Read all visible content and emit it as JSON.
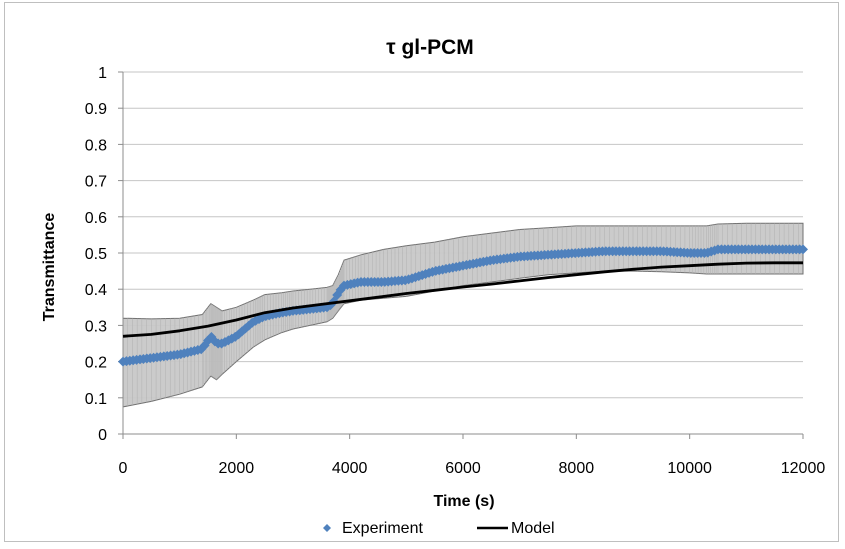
{
  "chart_data": {
    "type": "scatter",
    "title": "τ gl-PCM",
    "xlabel": "Time (s)",
    "ylabel": "Transmittance",
    "xlim": [
      0,
      12000
    ],
    "ylim": [
      0,
      1
    ],
    "xticks": [
      "0",
      "2000",
      "4000",
      "6000",
      "8000",
      "10000",
      "12000"
    ],
    "yticks": [
      "0",
      "0.1",
      "0.2",
      "0.3",
      "0.4",
      "0.5",
      "0.6",
      "0.7",
      "0.8",
      "0.9",
      "1"
    ],
    "grid": true,
    "legend_position": "bottom",
    "legend": {
      "experiment": "Experiment",
      "model": "Model"
    },
    "colors": {
      "experiment": "#4f81bd",
      "model": "#000000",
      "band": "#c8c8c8",
      "band_stroke": "#707070"
    },
    "series": [
      {
        "name": "Experiment",
        "style": "markers",
        "x": [
          0,
          500,
          1000,
          1400,
          1550,
          1650,
          1750,
          2000,
          2300,
          2500,
          2800,
          3000,
          3300,
          3600,
          3700,
          3800,
          3900,
          4200,
          4600,
          5000,
          5500,
          6000,
          6500,
          7000,
          7500,
          8000,
          8500,
          9000,
          9500,
          10000,
          10300,
          10500,
          11000,
          11500,
          12000
        ],
        "y": [
          0.2,
          0.21,
          0.22,
          0.235,
          0.27,
          0.25,
          0.25,
          0.27,
          0.31,
          0.325,
          0.335,
          0.34,
          0.345,
          0.35,
          0.36,
          0.39,
          0.41,
          0.42,
          0.42,
          0.425,
          0.45,
          0.465,
          0.48,
          0.49,
          0.495,
          0.5,
          0.505,
          0.505,
          0.505,
          0.5,
          0.5,
          0.51,
          0.51,
          0.51,
          0.51
        ]
      },
      {
        "name": "Model",
        "style": "line",
        "x": [
          0,
          500,
          1000,
          1500,
          2000,
          2500,
          3000,
          3500,
          4000,
          4500,
          5000,
          5500,
          6000,
          6500,
          7000,
          7500,
          8000,
          8500,
          9000,
          9500,
          10000,
          10500,
          11000,
          11500,
          12000
        ],
        "y": [
          0.27,
          0.275,
          0.285,
          0.298,
          0.315,
          0.335,
          0.348,
          0.358,
          0.368,
          0.378,
          0.388,
          0.397,
          0.406,
          0.414,
          0.423,
          0.432,
          0.44,
          0.448,
          0.455,
          0.461,
          0.465,
          0.469,
          0.472,
          0.473,
          0.473
        ]
      }
    ],
    "uncertainty_band": {
      "x": [
        0,
        500,
        1000,
        1400,
        1550,
        1650,
        1750,
        2000,
        2300,
        2500,
        2800,
        3000,
        3300,
        3600,
        3700,
        3800,
        3900,
        4200,
        4600,
        5000,
        5500,
        6000,
        6500,
        7000,
        7500,
        8000,
        8500,
        9000,
        9500,
        10000,
        10300,
        10500,
        11000,
        11500,
        12000
      ],
      "upper": [
        0.32,
        0.318,
        0.32,
        0.33,
        0.36,
        0.35,
        0.34,
        0.35,
        0.37,
        0.385,
        0.39,
        0.395,
        0.4,
        0.405,
        0.41,
        0.44,
        0.48,
        0.495,
        0.51,
        0.52,
        0.53,
        0.545,
        0.555,
        0.565,
        0.57,
        0.575,
        0.575,
        0.575,
        0.575,
        0.575,
        0.575,
        0.58,
        0.582,
        0.582,
        0.582
      ],
      "lower": [
        0.075,
        0.09,
        0.11,
        0.13,
        0.16,
        0.15,
        0.165,
        0.2,
        0.24,
        0.26,
        0.28,
        0.29,
        0.3,
        0.31,
        0.32,
        0.34,
        0.36,
        0.37,
        0.375,
        0.38,
        0.395,
        0.41,
        0.42,
        0.43,
        0.44,
        0.445,
        0.45,
        0.45,
        0.448,
        0.445,
        0.442,
        0.442,
        0.442,
        0.442,
        0.442
      ]
    }
  }
}
